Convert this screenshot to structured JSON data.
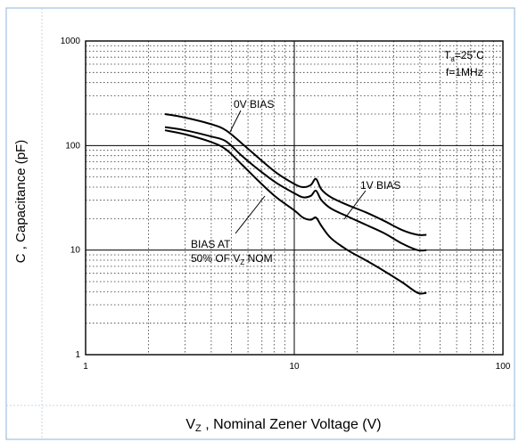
{
  "chart_data": {
    "type": "line",
    "x_scale": "log",
    "y_scale": "log",
    "xlim": [
      1,
      100
    ],
    "ylim": [
      1,
      1000
    ],
    "x_ticks": [
      "1",
      "10",
      "100"
    ],
    "y_ticks": [
      "1000",
      "100",
      "10",
      "1"
    ],
    "xlabel_main": "V",
    "xlabel_sub": "Z",
    "xlabel_rest": " , Nominal Zener Voltage (V)",
    "ylabel": "C , Capacitance (pF)",
    "grid": true,
    "conditions": {
      "ta_main": "T",
      "ta_sub": "a",
      "ta_rest": "=25˚C",
      "freq": "f=1MHz"
    },
    "annotations": {
      "zero_bias": "0V BIAS",
      "one_bias": "1V BIAS",
      "half_line1": "BIAS AT",
      "half_line2_main": "50% OF V",
      "half_line2_sub": "Z",
      "half_line2_rest": " NOM"
    },
    "series": [
      {
        "x": [
          2.4,
          3.0,
          4.0,
          4.7,
          5.6,
          6.8,
          8.2,
          10,
          11,
          12,
          12.7,
          13.5,
          15,
          18,
          22,
          27,
          33,
          39,
          43
        ],
        "y": [
          200,
          185,
          160,
          140,
          105,
          75,
          55,
          43,
          40,
          42,
          48,
          38,
          32,
          27,
          23,
          19,
          15.5,
          14,
          14
        ]
      },
      {
        "x": [
          2.4,
          3.0,
          4.0,
          4.7,
          5.6,
          6.8,
          8.2,
          10,
          11,
          12,
          12.7,
          13.5,
          15,
          18,
          22,
          27,
          33,
          39,
          43
        ],
        "y": [
          150,
          140,
          122,
          110,
          80,
          58,
          44,
          35,
          32,
          33,
          37,
          30,
          25,
          21,
          17.5,
          14.5,
          11.5,
          10,
          10
        ]
      },
      {
        "x": [
          2.4,
          3.0,
          4.0,
          4.7,
          5.6,
          6.8,
          8.2,
          10,
          11,
          12,
          12.7,
          13.5,
          15,
          18,
          22,
          27,
          33,
          39,
          43
        ],
        "y": [
          140,
          128,
          108,
          92,
          66,
          45,
          32,
          24,
          20.5,
          19.5,
          20.5,
          17,
          13,
          10,
          8,
          6.3,
          4.9,
          3.9,
          3.9
        ]
      }
    ]
  }
}
